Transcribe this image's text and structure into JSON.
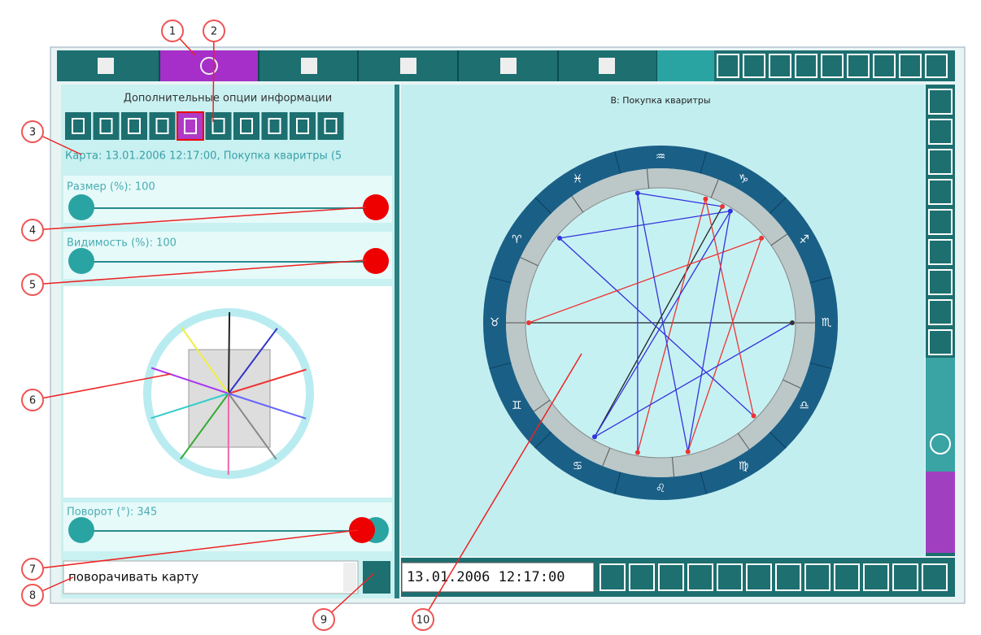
{
  "panel": {
    "heading": "Дополнительные опции информации",
    "map_info": "Карта: 13.01.2006 12:17:00, Покупка кваритры (5",
    "size_label": "Размер (%): 100",
    "visibility_label": "Видимость (%): 100",
    "rotation_label": "Поворот (°): 345",
    "dropdown": "поворачивать карту"
  },
  "chart": {
    "title": "B: Покупка кваритры",
    "zodiac": [
      "♉",
      "♈",
      "♓",
      "♒",
      "♑",
      "♐",
      "♏",
      "♎",
      "♍",
      "♌",
      "♋",
      "♊"
    ]
  },
  "date_field": "13.01.2006 12:17:00",
  "callouts": [
    1,
    2,
    3,
    4,
    5,
    6,
    7,
    8,
    9,
    10
  ]
}
